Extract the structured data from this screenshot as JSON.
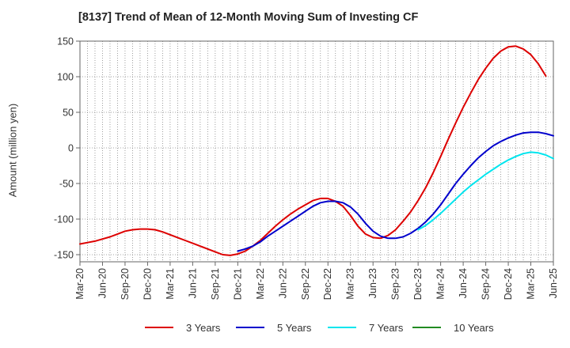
{
  "chart_data": {
    "type": "line",
    "title": "[8137]  Trend of Mean of 12-Month Moving Sum of Investing CF",
    "xlabel": "",
    "ylabel": "Amount (million yen)",
    "ylim": [
      -160,
      150
    ],
    "yticks": [
      150,
      100,
      50,
      0,
      -50,
      -100,
      -150
    ],
    "x_tick_labels": [
      "Mar-20",
      "Jun-20",
      "Sep-20",
      "Dec-20",
      "Mar-21",
      "Jun-21",
      "Sep-21",
      "Dec-21",
      "Mar-22",
      "Jun-22",
      "Sep-22",
      "Dec-22",
      "Mar-23",
      "Jun-23",
      "Sep-23",
      "Dec-23",
      "Mar-24",
      "Jun-24",
      "Sep-24",
      "Dec-24",
      "Mar-25",
      "Jun-25"
    ],
    "x_domain_months": [
      0,
      63
    ],
    "grid": true,
    "legend_position": "bottom",
    "series": [
      {
        "name": "3 Years",
        "color": "#dd0000",
        "start_month": 0,
        "values": [
          -135,
          -133,
          -131,
          -128,
          -125,
          -121,
          -117,
          -115,
          -114,
          -114,
          -115,
          -118,
          -122,
          -126,
          -130,
          -134,
          -138,
          -142,
          -146,
          -150,
          -151,
          -149,
          -145,
          -138,
          -130,
          -120,
          -110,
          -101,
          -93,
          -86,
          -80,
          -74,
          -71,
          -71,
          -75,
          -82,
          -95,
          -110,
          -121,
          -126,
          -127,
          -123,
          -115,
          -103,
          -90,
          -74,
          -56,
          -35,
          -12,
          12,
          35,
          57,
          77,
          96,
          112,
          126,
          136,
          142,
          143,
          139,
          131,
          118,
          101
        ]
      },
      {
        "name": "5 Years",
        "color": "#0000cc",
        "start_month": 21,
        "values": [
          -145,
          -142,
          -138,
          -132,
          -124,
          -117,
          -110,
          -103,
          -96,
          -89,
          -82,
          -77,
          -75,
          -75,
          -77,
          -83,
          -93,
          -106,
          -117,
          -124,
          -127,
          -127,
          -125,
          -120,
          -113,
          -104,
          -93,
          -80,
          -65,
          -50,
          -37,
          -25,
          -14,
          -5,
          3,
          9,
          14,
          18,
          21,
          22,
          22,
          20,
          17
        ]
      },
      {
        "name": "7 Years",
        "color": "#00e5ee",
        "start_month": 45,
        "values": [
          -115,
          -109,
          -101,
          -92,
          -82,
          -72,
          -62,
          -53,
          -45,
          -37,
          -30,
          -23,
          -17,
          -12,
          -8,
          -6,
          -7,
          -10,
          -15
        ]
      },
      {
        "name": "10 Years",
        "color": "#228b22",
        "start_month": 0,
        "values": []
      }
    ]
  }
}
